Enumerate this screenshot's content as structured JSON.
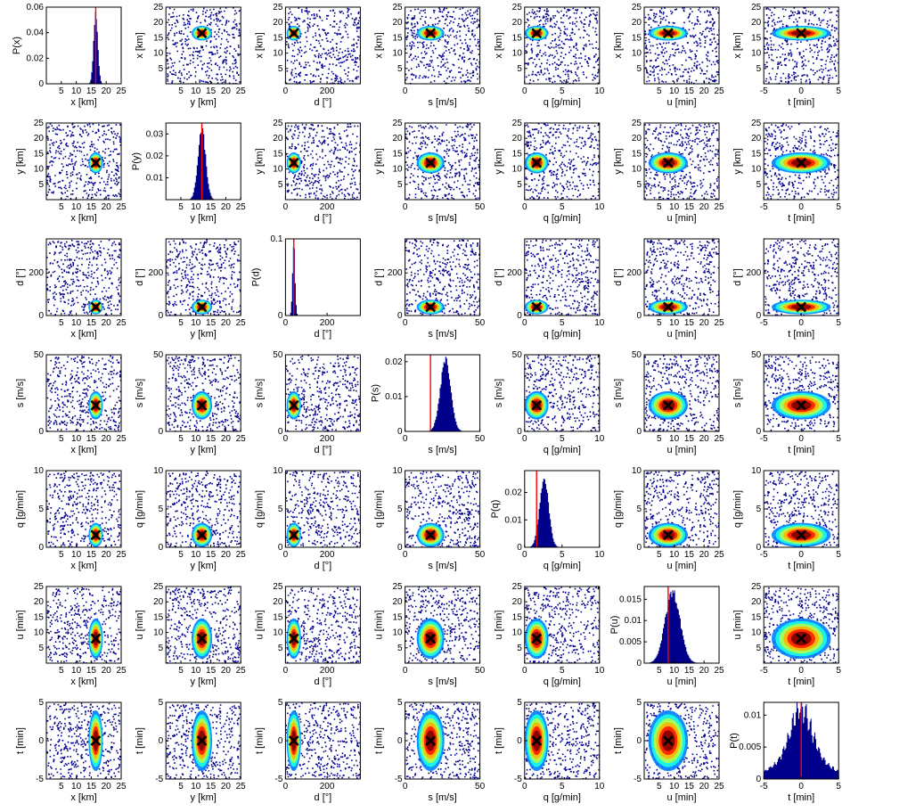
{
  "figure": {
    "layout": "7x7 matrix",
    "rows": 7,
    "cols": 7
  },
  "chart_data": {
    "type": "scatter",
    "subtype": "pairwise posterior matrix (diagonal histograms, off-diagonal sample densities)",
    "variables": [
      {
        "key": "x",
        "label": "x [km]",
        "hist_label": "P(x)",
        "range": [
          0,
          25
        ],
        "ticks": [
          5,
          10,
          15,
          20,
          25
        ],
        "truth": 16.5,
        "hist_center": 16.5,
        "hist_sigma": 0.7,
        "hist_ylim": [
          0,
          0.06
        ],
        "hist_yticks": [
          0,
          0.02,
          0.04,
          0.06
        ]
      },
      {
        "key": "y",
        "label": "y [km]",
        "hist_label": "P(y)",
        "range": [
          0,
          25
        ],
        "ticks": [
          5,
          10,
          15,
          20,
          25
        ],
        "truth": 12,
        "hist_center": 12,
        "hist_sigma": 1.3,
        "hist_ylim": [
          0,
          0.035
        ],
        "hist_yticks": [
          0.01,
          0.02,
          0.03
        ]
      },
      {
        "key": "d",
        "label": "d [°]",
        "hist_label": "P(d)",
        "range": [
          0,
          360
        ],
        "ticks": [
          0,
          200
        ],
        "truth": 40,
        "hist_center": 40,
        "hist_sigma": 6,
        "hist_ylim": [
          0,
          0.1
        ],
        "hist_yticks": [
          0,
          0.1
        ]
      },
      {
        "key": "s",
        "label": "s [m/s]",
        "hist_label": "P(s)",
        "range": [
          0,
          50
        ],
        "ticks": [
          0,
          50
        ],
        "truth": 17,
        "hist_center": 27,
        "hist_sigma": 3.5,
        "hist_ylim": [
          0,
          0.022
        ],
        "hist_yticks": [
          0,
          0.01,
          0.02
        ]
      },
      {
        "key": "q",
        "label": "q [g/min]",
        "hist_label": "P(q)",
        "range": [
          0,
          10
        ],
        "ticks": [
          0,
          5,
          10
        ],
        "truth": 1.6,
        "hist_center": 2.6,
        "hist_sigma": 0.6,
        "hist_ylim": [
          0,
          0.028
        ],
        "hist_yticks": [
          0,
          0.01,
          0.02
        ]
      },
      {
        "key": "u",
        "label": "u [min]",
        "hist_label": "P(u)",
        "range": [
          0,
          25
        ],
        "ticks": [
          5,
          10,
          15,
          20,
          25
        ],
        "truth": 8,
        "hist_center": 9.5,
        "hist_sigma": 2.5,
        "hist_ylim": [
          0,
          0.018
        ],
        "hist_yticks": [
          0,
          0.005,
          0.01,
          0.015
        ]
      },
      {
        "key": "t",
        "label": "t [min]",
        "hist_label": "P(t)",
        "range": [
          -5,
          5
        ],
        "ticks": [
          -5,
          0,
          5
        ],
        "truth": 0,
        "hist_center": 0,
        "hist_sigma": 1.5,
        "hist_ylim": [
          0,
          0.012
        ],
        "hist_yticks": [
          0,
          0.005,
          0.01
        ]
      }
    ],
    "colormap": [
      "#00008f",
      "#0000ff",
      "#00ffff",
      "#ffff00",
      "#ff0000",
      "#800000"
    ],
    "truth_marker": "x",
    "truth_line_color": "#ff0000",
    "histogram_color": "#00008b",
    "grid": false
  }
}
